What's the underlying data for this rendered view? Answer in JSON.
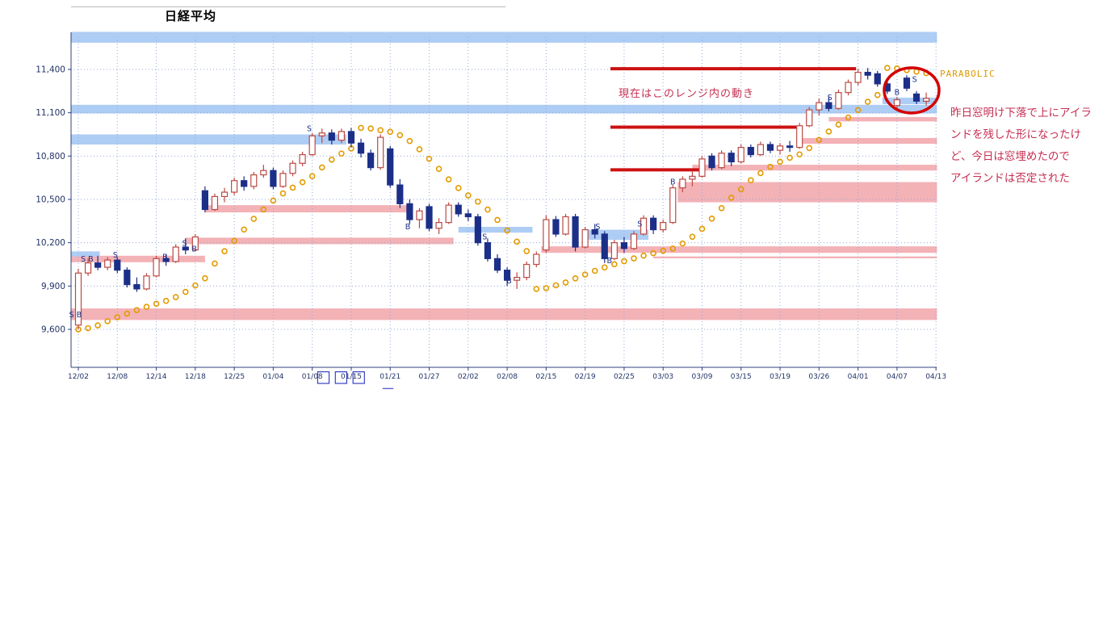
{
  "chart_data": {
    "type": "candlestick",
    "title": "日経平均",
    "ylim": [
      9420,
      11700
    ],
    "grid": true,
    "y_ticks": [
      {
        "value": 11400,
        "label": "11,400"
      },
      {
        "value": 11100,
        "label": "11,100"
      },
      {
        "value": 10800,
        "label": "10,800"
      },
      {
        "value": 10500,
        "label": "10,500"
      },
      {
        "value": 10200,
        "label": "10,200"
      },
      {
        "value": 9900,
        "label": "9,900"
      },
      {
        "value": 9600,
        "label": "9,600"
      }
    ],
    "x_ticks": [
      {
        "idx": 0,
        "label": "12/02"
      },
      {
        "idx": 4,
        "label": "12/08"
      },
      {
        "idx": 8,
        "label": "12/14"
      },
      {
        "idx": 12,
        "label": "12/18"
      },
      {
        "idx": 16,
        "label": "12/25"
      },
      {
        "idx": 20,
        "label": "01/04"
      },
      {
        "idx": 24,
        "label": "01/08"
      },
      {
        "idx": 28,
        "label": "01/15"
      },
      {
        "idx": 32,
        "label": "01/21"
      },
      {
        "idx": 36,
        "label": "01/27"
      },
      {
        "idx": 40,
        "label": "02/02"
      },
      {
        "idx": 44,
        "label": "02/08"
      },
      {
        "idx": 48,
        "label": "02/15"
      },
      {
        "idx": 52,
        "label": "02/19"
      },
      {
        "idx": 56,
        "label": "02/25"
      },
      {
        "idx": 60,
        "label": "03/03"
      },
      {
        "idx": 64,
        "label": "03/09"
      },
      {
        "idx": 68,
        "label": "03/15"
      },
      {
        "idx": 72,
        "label": "03/19"
      },
      {
        "idx": 76,
        "label": "03/26"
      },
      {
        "idx": 80,
        "label": "04/01"
      },
      {
        "idx": 84,
        "label": "04/07"
      },
      {
        "idx": 88,
        "label": "04/13"
      }
    ],
    "candles": [
      [
        9630,
        10020,
        9600,
        9990
      ],
      [
        9990,
        10090,
        9970,
        10060
      ],
      [
        10060,
        10110,
        10010,
        10030
      ],
      [
        10030,
        10100,
        10010,
        10080
      ],
      [
        10080,
        10100,
        9990,
        10010
      ],
      [
        10010,
        10030,
        9890,
        9910
      ],
      [
        9910,
        9960,
        9860,
        9880
      ],
      [
        9880,
        9990,
        9870,
        9970
      ],
      [
        9970,
        10110,
        9960,
        10090
      ],
      [
        10090,
        10120,
        10040,
        10070
      ],
      [
        10070,
        10190,
        10060,
        10170
      ],
      [
        10170,
        10230,
        10120,
        10150
      ],
      [
        10150,
        10260,
        10140,
        10240
      ],
      [
        10560,
        10590,
        10410,
        10430
      ],
      [
        10430,
        10540,
        10420,
        10520
      ],
      [
        10520,
        10580,
        10480,
        10550
      ],
      [
        10550,
        10650,
        10530,
        10630
      ],
      [
        10630,
        10660,
        10560,
        10590
      ],
      [
        10590,
        10690,
        10570,
        10670
      ],
      [
        10670,
        10740,
        10650,
        10700
      ],
      [
        10700,
        10720,
        10570,
        10590
      ],
      [
        10590,
        10700,
        10580,
        10680
      ],
      [
        10680,
        10770,
        10660,
        10750
      ],
      [
        10750,
        10830,
        10730,
        10810
      ],
      [
        10810,
        10960,
        10800,
        10940
      ],
      [
        10940,
        10990,
        10890,
        10960
      ],
      [
        10960,
        10985,
        10880,
        10910
      ],
      [
        10910,
        10990,
        10890,
        10970
      ],
      [
        10970,
        10995,
        10860,
        10890
      ],
      [
        10890,
        10920,
        10790,
        10820
      ],
      [
        10820,
        10845,
        10700,
        10720
      ],
      [
        10720,
        10950,
        10705,
        10930
      ],
      [
        10850,
        10870,
        10580,
        10600
      ],
      [
        10600,
        10640,
        10440,
        10470
      ],
      [
        10470,
        10500,
        10330,
        10360
      ],
      [
        10360,
        10440,
        10300,
        10420
      ],
      [
        10450,
        10470,
        10280,
        10300
      ],
      [
        10300,
        10370,
        10260,
        10340
      ],
      [
        10340,
        10480,
        10330,
        10460
      ],
      [
        10460,
        10480,
        10380,
        10400
      ],
      [
        10400,
        10430,
        10350,
        10380
      ],
      [
        10380,
        10400,
        10180,
        10200
      ],
      [
        10200,
        10230,
        10070,
        10090
      ],
      [
        10090,
        10120,
        9990,
        10010
      ],
      [
        10010,
        10030,
        9900,
        9940
      ],
      [
        9940,
        9995,
        9880,
        9960
      ],
      [
        9960,
        10070,
        9940,
        10050
      ],
      [
        10050,
        10140,
        10030,
        10120
      ],
      [
        10150,
        10390,
        10130,
        10360
      ],
      [
        10360,
        10385,
        10240,
        10260
      ],
      [
        10260,
        10400,
        10250,
        10380
      ],
      [
        10380,
        10400,
        10140,
        10170
      ],
      [
        10170,
        10310,
        10160,
        10290
      ],
      [
        10290,
        10330,
        10230,
        10260
      ],
      [
        10260,
        10280,
        10060,
        10090
      ],
      [
        10090,
        10220,
        10080,
        10200
      ],
      [
        10200,
        10240,
        10130,
        10160
      ],
      [
        10160,
        10280,
        10150,
        10260
      ],
      [
        10260,
        10390,
        10250,
        10370
      ],
      [
        10370,
        10390,
        10260,
        10290
      ],
      [
        10290,
        10360,
        10270,
        10340
      ],
      [
        10340,
        10600,
        10330,
        10580
      ],
      [
        10580,
        10660,
        10550,
        10640
      ],
      [
        10640,
        10700,
        10590,
        10660
      ],
      [
        10660,
        10800,
        10650,
        10780
      ],
      [
        10800,
        10820,
        10700,
        10720
      ],
      [
        10720,
        10840,
        10710,
        10820
      ],
      [
        10820,
        10840,
        10730,
        10760
      ],
      [
        10760,
        10880,
        10750,
        10860
      ],
      [
        10860,
        10880,
        10790,
        10810
      ],
      [
        10810,
        10900,
        10800,
        10880
      ],
      [
        10880,
        10900,
        10820,
        10840
      ],
      [
        10840,
        10890,
        10810,
        10870
      ],
      [
        10870,
        10905,
        10830,
        10860
      ],
      [
        10860,
        11030,
        10850,
        11010
      ],
      [
        11010,
        11140,
        11000,
        11120
      ],
      [
        11120,
        11200,
        11080,
        11170
      ],
      [
        11170,
        11210,
        11110,
        11130
      ],
      [
        11130,
        11260,
        11120,
        11240
      ],
      [
        11240,
        11330,
        11220,
        11310
      ],
      [
        11310,
        11405,
        11290,
        11380
      ],
      [
        11380,
        11410,
        11330,
        11360
      ],
      [
        11370,
        11390,
        11280,
        11300
      ],
      [
        11300,
        11330,
        11230,
        11250
      ],
      [
        11150,
        11210,
        11130,
        11190
      ],
      [
        11340,
        11360,
        11250,
        11270
      ],
      [
        11230,
        11250,
        11160,
        11180
      ],
      [
        11180,
        11240,
        11150,
        11200
      ]
    ],
    "parabolic": {
      "label": "PARABOLIC",
      "af_start": 0.02,
      "af_step": 0.02,
      "af_max": 0.2
    },
    "bands": [
      {
        "color": "blue",
        "from": -0.75,
        "to": 88.1,
        "top": 11660,
        "bottom": 11585
      },
      {
        "color": "blue",
        "from": -0.75,
        "to": 88.1,
        "top": 11155,
        "bottom": 11095
      },
      {
        "color": "blue",
        "from": -0.75,
        "to": 27.5,
        "top": 10950,
        "bottom": 10880
      },
      {
        "color": "pink",
        "from": -0.75,
        "to": 88.1,
        "top": 9745,
        "bottom": 9665
      },
      {
        "color": "pink",
        "from": -0.75,
        "to": 13,
        "top": 10110,
        "bottom": 10065
      },
      {
        "color": "blue",
        "from": -0.75,
        "to": 2.2,
        "top": 10140,
        "bottom": 10105
      },
      {
        "color": "pink",
        "from": 11,
        "to": 38.5,
        "top": 10235,
        "bottom": 10190
      },
      {
        "color": "pink",
        "from": 13,
        "to": 34,
        "top": 10460,
        "bottom": 10410
      },
      {
        "color": "blue",
        "from": 39,
        "to": 46.6,
        "top": 10310,
        "bottom": 10270
      },
      {
        "color": "blue",
        "from": 52,
        "to": 58.5,
        "top": 10290,
        "bottom": 10220
      },
      {
        "color": "pink",
        "from": 47.5,
        "to": 88.1,
        "top": 10175,
        "bottom": 10130
      },
      {
        "color": "pink",
        "from": 59,
        "to": 88.1,
        "top": 10105,
        "bottom": 10092
      },
      {
        "color": "pink",
        "from": 61.5,
        "to": 88.1,
        "top": 10620,
        "bottom": 10480
      },
      {
        "color": "pink",
        "from": 63,
        "to": 88.1,
        "top": 10740,
        "bottom": 10700
      },
      {
        "color": "pink",
        "from": 74,
        "to": 88.1,
        "top": 10925,
        "bottom": 10885
      },
      {
        "color": "pink",
        "from": 77,
        "to": 88.1,
        "top": 11070,
        "bottom": 11040
      },
      {
        "color": "blue",
        "from": 82.5,
        "to": 88.1,
        "top": 11205,
        "bottom": 11160
      }
    ],
    "red_lines": [
      {
        "from": 54.6,
        "to": 79.8,
        "price": 11405
      },
      {
        "from": 54.6,
        "to": 74.1,
        "price": 11000
      },
      {
        "from": 54.6,
        "to": 63.9,
        "price": 10705
      }
    ],
    "markers": [
      {
        "i": -0.3,
        "y": 9700,
        "label": "S B"
      },
      {
        "i": 0.9,
        "y": 10085,
        "label": "S B"
      },
      {
        "i": 3.8,
        "y": 10115,
        "label": "S"
      },
      {
        "i": 8.9,
        "y": 10100,
        "label": "B"
      },
      {
        "i": 10.9,
        "y": 10195,
        "label": "S"
      },
      {
        "i": 11.9,
        "y": 10155,
        "label": "B"
      },
      {
        "i": 23.7,
        "y": 10990,
        "label": "S"
      },
      {
        "i": 33.8,
        "y": 10310,
        "label": "B"
      },
      {
        "i": 41.7,
        "y": 10240,
        "label": "S"
      },
      {
        "i": 44.2,
        "y": 9935,
        "label": "B"
      },
      {
        "i": 53.3,
        "y": 10310,
        "label": "S"
      },
      {
        "i": 54.5,
        "y": 10075,
        "label": "B"
      },
      {
        "i": 57.6,
        "y": 10330,
        "label": "S"
      },
      {
        "i": 61.0,
        "y": 10620,
        "label": "B"
      },
      {
        "i": 77.1,
        "y": 11205,
        "label": "S"
      },
      {
        "i": 84.0,
        "y": 11240,
        "label": "B"
      },
      {
        "i": 85.8,
        "y": 11330,
        "label": "S"
      }
    ],
    "circle": {
      "center_i": 85.5,
      "center_price": 11255,
      "rx": 34,
      "ry": 28
    },
    "colors": {
      "band_blue": "#aecdf4",
      "band_pink": "#f3b2b6",
      "down_candle": "#1c2f88",
      "up_candle_border": "#bb4a44",
      "sar_dot": "#e39b00",
      "red_line": "#cc1111",
      "grid": "#96a8d8",
      "axis": "#31417e",
      "label": "#223366",
      "circle": "#d40000"
    }
  },
  "annotations": {
    "range_note": "現在はこのレンジ内の動き",
    "parabolic_label": "PARABOLIC",
    "side_note_lines": [
      "昨日窓明け下落で上にアイラ",
      "ンドを残した形になったけ",
      "ど、今日は窓埋めたので",
      "アイランドは否定された"
    ],
    "garbled_text": "□□□",
    "garbled_underscore": "＿"
  }
}
